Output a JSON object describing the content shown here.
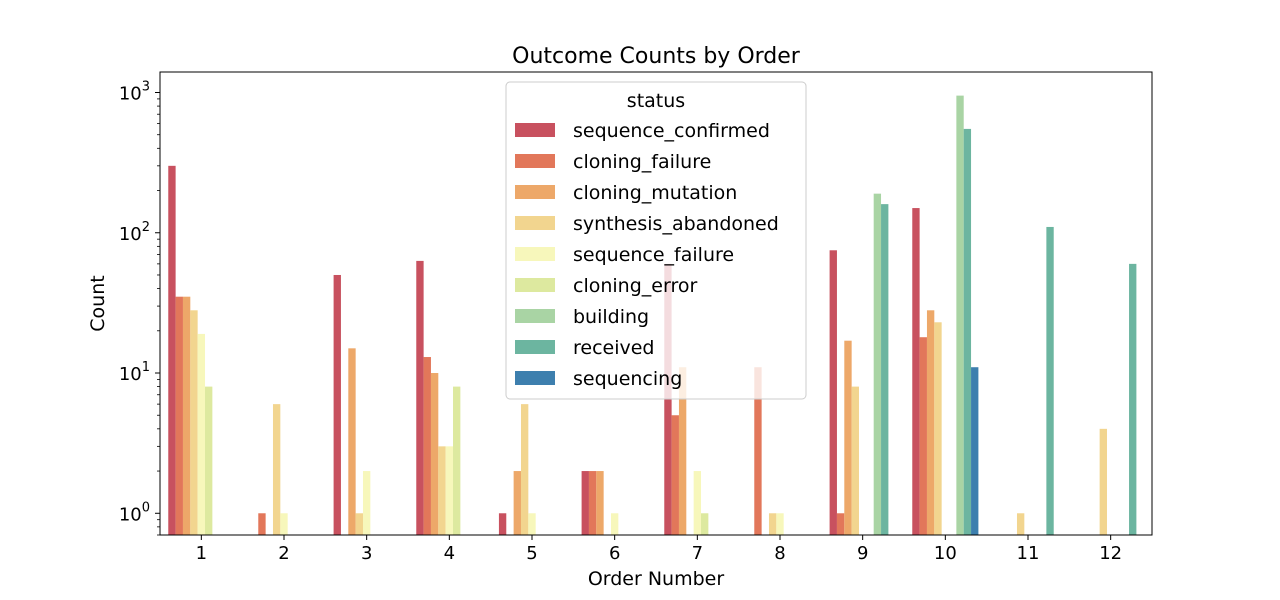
{
  "chart_data": {
    "type": "bar",
    "title": "Outcome Counts by Order",
    "xlabel": "Order Number",
    "ylabel": "Count",
    "yscale": "log",
    "ylim": [
      0.7,
      1400
    ],
    "yticks": [
      {
        "value": 1,
        "base": "10",
        "exp": "0"
      },
      {
        "value": 10,
        "base": "10",
        "exp": "1"
      },
      {
        "value": 100,
        "base": "10",
        "exp": "2"
      },
      {
        "value": 1000,
        "base": "10",
        "exp": "3"
      }
    ],
    "categories": [
      "1",
      "2",
      "3",
      "4",
      "5",
      "6",
      "7",
      "8",
      "9",
      "10",
      "11",
      "12"
    ],
    "grid": false,
    "legend": {
      "title": "status",
      "placement": "upper-center"
    },
    "series": [
      {
        "name": "sequence_confirmed",
        "color": "#c8515f",
        "values": [
          300,
          null,
          50,
          63,
          1,
          2,
          60,
          null,
          75,
          150,
          null,
          null
        ]
      },
      {
        "name": "cloning_failure",
        "color": "#e2775a",
        "values": [
          35,
          1,
          null,
          13,
          null,
          2,
          5,
          11,
          1,
          18,
          null,
          null
        ]
      },
      {
        "name": "cloning_mutation",
        "color": "#eda869",
        "values": [
          35,
          null,
          15,
          10,
          2,
          2,
          11,
          null,
          17,
          28,
          null,
          null
        ]
      },
      {
        "name": "synthesis_abandoned",
        "color": "#f2d58f",
        "values": [
          28,
          6,
          1,
          3,
          6,
          null,
          null,
          1,
          8,
          23,
          1,
          4
        ]
      },
      {
        "name": "sequence_failure",
        "color": "#f7f7bb",
        "values": [
          19,
          1,
          2,
          3,
          1,
          1,
          2,
          1,
          null,
          null,
          null,
          null
        ]
      },
      {
        "name": "cloning_error",
        "color": "#dde99f",
        "values": [
          8,
          null,
          null,
          8,
          null,
          null,
          1,
          null,
          null,
          null,
          null,
          null
        ]
      },
      {
        "name": "building",
        "color": "#a9d4a4",
        "values": [
          null,
          null,
          null,
          null,
          null,
          null,
          null,
          null,
          190,
          950,
          null,
          null
        ]
      },
      {
        "name": "received",
        "color": "#6cb5a0",
        "values": [
          null,
          null,
          null,
          null,
          null,
          null,
          null,
          null,
          160,
          550,
          110,
          60
        ]
      },
      {
        "name": "sequencing",
        "color": "#3d7fae",
        "values": [
          null,
          null,
          null,
          null,
          null,
          null,
          null,
          null,
          null,
          11,
          null,
          null
        ]
      }
    ]
  }
}
